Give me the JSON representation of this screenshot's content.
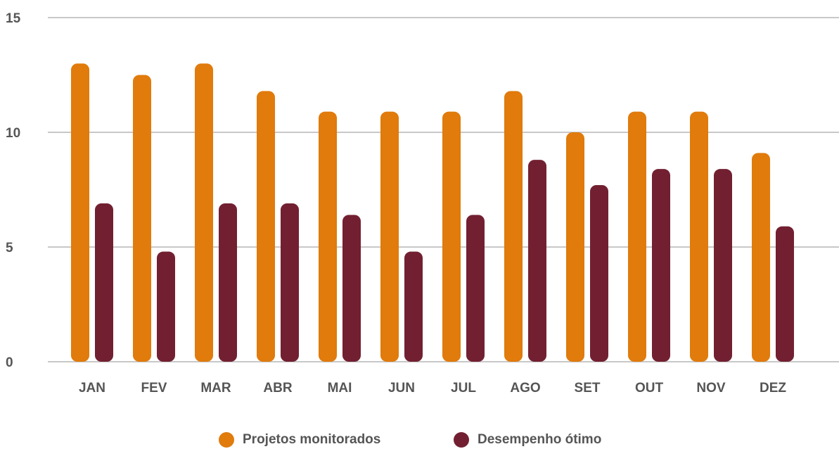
{
  "chart_data": {
    "type": "bar",
    "categories": [
      "JAN",
      "FEV",
      "MAR",
      "ABR",
      "MAI",
      "JUN",
      "JUL",
      "AGO",
      "SET",
      "OUT",
      "NOV",
      "DEZ"
    ],
    "series": [
      {
        "name": "Projetos monitorados",
        "color": "#E07B0C",
        "values": [
          13,
          12.5,
          13,
          11.8,
          10.9,
          10.9,
          10.9,
          11.8,
          10,
          10.9,
          10.9,
          9.1
        ]
      },
      {
        "name": "Desempenho ótimo",
        "color": "#722031",
        "values": [
          6.9,
          4.8,
          6.9,
          6.9,
          6.4,
          4.8,
          6.4,
          8.8,
          7.7,
          8.4,
          8.4,
          5.9
        ]
      }
    ],
    "yticks": [
      0,
      5,
      10,
      15
    ],
    "ylim": [
      0,
      15
    ],
    "grid": true,
    "legend": "bottom-center",
    "gridline_color": "#C8C8C8"
  }
}
